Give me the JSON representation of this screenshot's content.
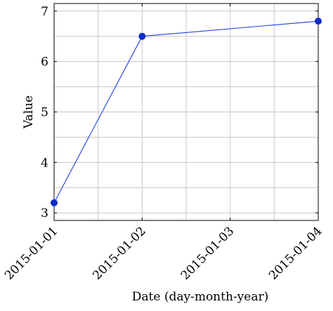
{
  "chart_data": {
    "type": "line",
    "xlabel": "Date (day-month-year)",
    "ylabel": "Value",
    "x": [
      "2015-01-01",
      "2015-01-02",
      "2015-01-03",
      "2015-01-04"
    ],
    "series": [
      {
        "color": "#1f3fe0",
        "marker_color": "#0a2dc8",
        "points": [
          {
            "x": "2015-01-01",
            "y": 3.2
          },
          {
            "x": "2015-01-02",
            "y": 6.5
          },
          {
            "x": "2015-01-04",
            "y": 6.8
          }
        ]
      }
    ],
    "xlim": [
      "2015-01-01",
      "2015-01-04"
    ],
    "ylim": [
      2.85,
      7.15
    ],
    "yticks": [
      3,
      4,
      5,
      6,
      7
    ],
    "xticks": [
      "2015-01-01",
      "2015-01-02",
      "2015-01-03",
      "2015-01-04"
    ],
    "x_minor_grid": true,
    "y_minor_grid": true,
    "grid": true,
    "x_tick_rotation": "45 degrees"
  }
}
